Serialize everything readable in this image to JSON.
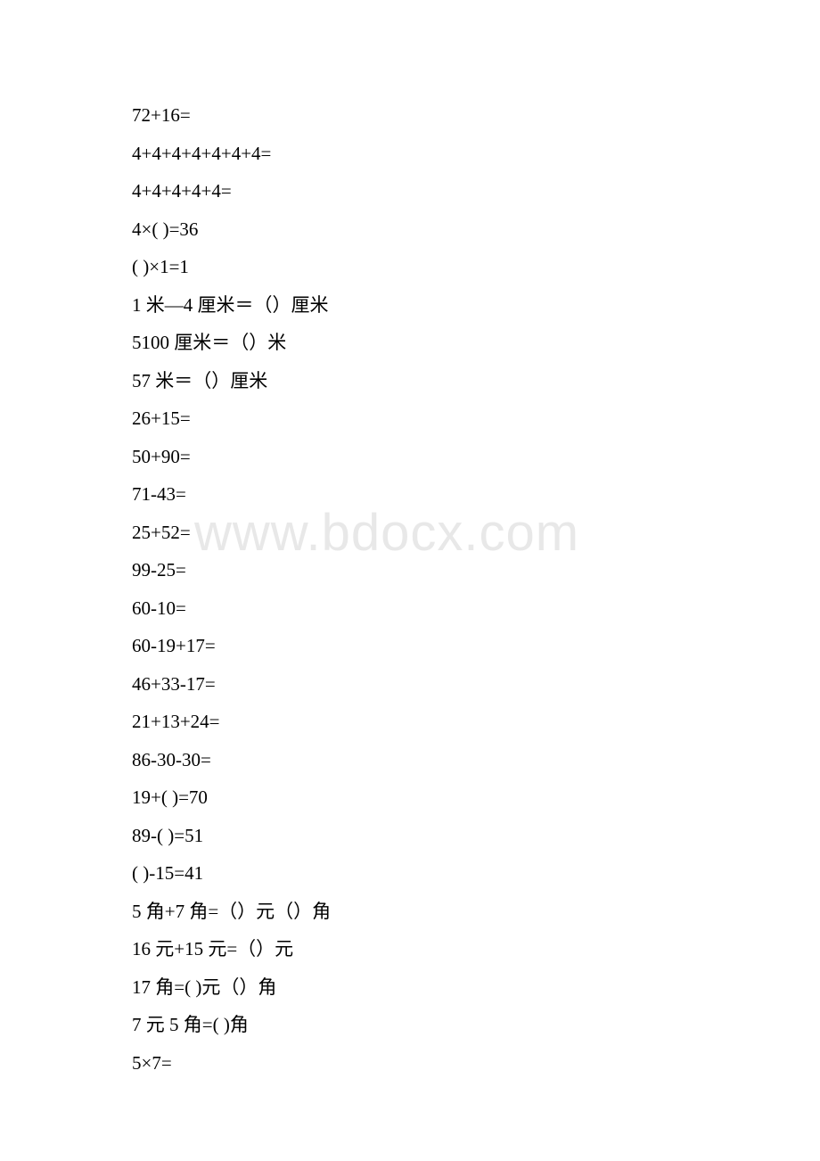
{
  "watermark": "www.bdocx.com",
  "lines": [
    "72+16=",
    "4+4+4+4+4+4+4=",
    "4+4+4+4+4=",
    "4×( )=36",
    "( )×1=1",
    "1 米—4 厘米＝（）厘米",
    "5100 厘米＝（）米",
    "57 米＝（）厘米",
    "26+15=",
    "50+90=",
    "71-43=",
    "25+52=",
    "99-25=",
    "60-10=",
    "60-19+17=",
    "46+33-17=",
    "21+13+24=",
    "86-30-30=",
    "19+( )=70",
    "89-( )=51",
    "( )-15=41",
    "5 角+7 角=（）元（）角",
    "16 元+15 元=（）元",
    "17 角=( )元（）角",
    "7 元 5 角=( )角",
    "5×7="
  ]
}
